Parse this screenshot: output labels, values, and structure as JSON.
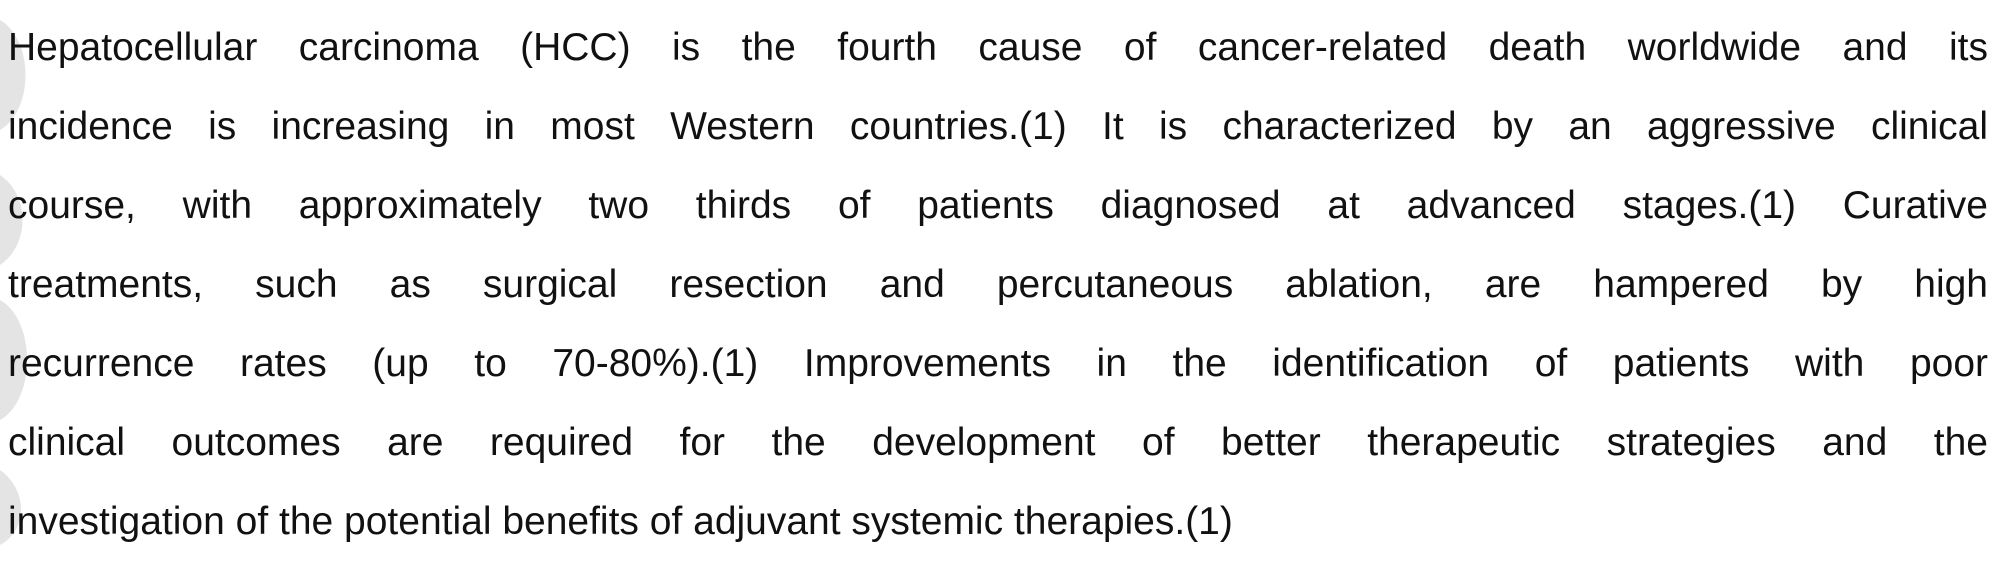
{
  "document": {
    "paragraph_lines": [
      "Hepatocellular carcinoma (HCC) is the fourth cause of cancer-related death worldwide and its",
      "incidence is increasing in most Western countries.(1) It is characterized by an aggressive clinical",
      "course, with approximately two thirds of patients diagnosed at advanced stages.(1) Curative",
      "treatments, such as surgical resection and percutaneous ablation, are hampered by high",
      "recurrence rates (up to 70-80%).(1) Improvements in the identification of patients with poor",
      "clinical outcomes are required for the development of better therapeutic strategies and the",
      "investigation of the potential benefits of adjuvant systemic therapies.(1)"
    ]
  }
}
